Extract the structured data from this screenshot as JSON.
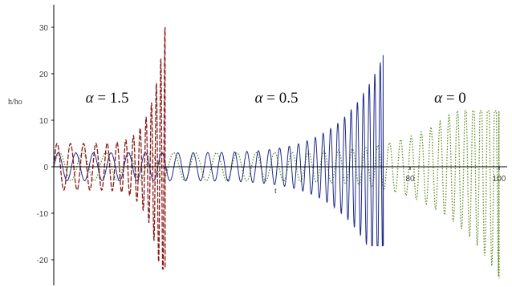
{
  "chart_data": {
    "type": "line",
    "title": "",
    "xlabel": "t",
    "ylabel": "h/ho",
    "xlim": [
      0,
      100
    ],
    "ylim": [
      -25,
      35
    ],
    "x_ticks": [
      {
        "value": 80,
        "label": "80"
      },
      {
        "value": 100,
        "label": "100"
      }
    ],
    "y_ticks": [
      {
        "value": 30,
        "label": "30"
      },
      {
        "value": 20,
        "label": "20"
      },
      {
        "value": 10,
        "label": "10"
      },
      {
        "value": 0,
        "label": "0"
      },
      {
        "value": -10,
        "label": "-10"
      },
      {
        "value": -20,
        "label": "-20"
      }
    ],
    "grid": false,
    "series": [
      {
        "alpha": "1.5",
        "style": "dashed",
        "color": "#8b1a1a",
        "t_end": 25,
        "initial_amplitude": 5,
        "max_value": 30,
        "min_value": -22
      },
      {
        "alpha": "0.5",
        "style": "solid",
        "color": "#1f2a8c",
        "t_end": 74,
        "initial_amplitude": 3,
        "max_value": 24,
        "min_value": -17
      },
      {
        "alpha": "0",
        "style": "dotted",
        "color": "#5a8a1a",
        "t_end": 100,
        "initial_amplitude": 3,
        "max_value": 12,
        "min_value": -24
      }
    ],
    "annotations": [
      {
        "symbol": "α",
        "text": " = 1.5",
        "x": 12,
        "y": 15
      },
      {
        "symbol": "α",
        "text": " = 0.5",
        "x": 50,
        "y": 15
      },
      {
        "symbol": "α",
        "text": " = 0",
        "x": 89,
        "y": 15
      }
    ]
  }
}
